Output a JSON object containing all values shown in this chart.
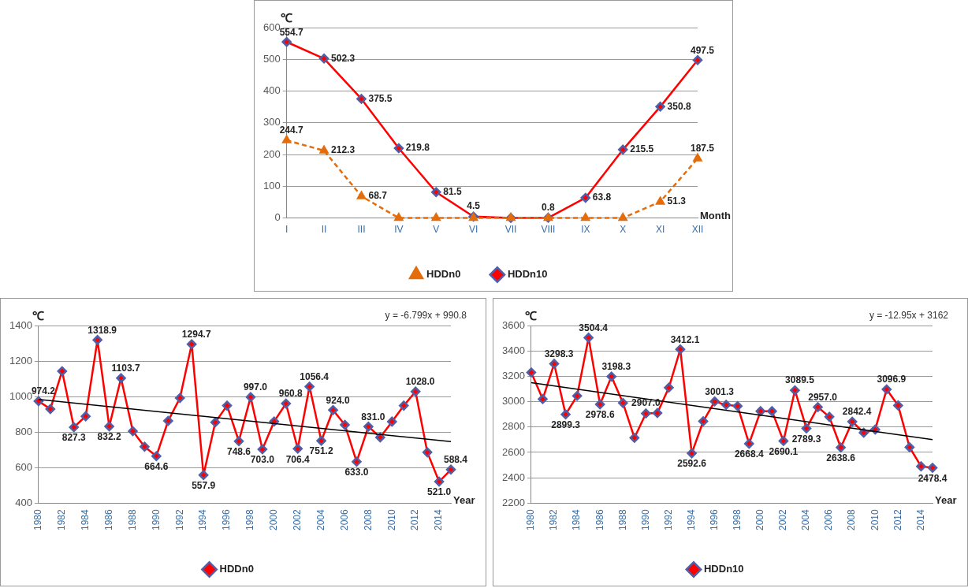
{
  "chart_data": [
    {
      "type": "line",
      "xlabel": "Month",
      "ylabel": "℃",
      "categories": [
        "I",
        "II",
        "III",
        "IV",
        "V",
        "VI",
        "VII",
        "VIII",
        "IX",
        "X",
        "XI",
        "XII"
      ],
      "ylim": [
        0,
        600
      ],
      "yticks": [
        0,
        100,
        200,
        300,
        400,
        500,
        600
      ],
      "grid": "y",
      "legend": "bottom",
      "series": [
        {
          "name": "HDDn0",
          "color": "#e46c0a",
          "marker": "triangle",
          "line_style": "dashed",
          "values": [
            244.7,
            212.3,
            68.7,
            0,
            0,
            0,
            0,
            0,
            0,
            0,
            51.3,
            187.5
          ],
          "value_labels": [
            "244.7",
            "212.3",
            "68.7",
            null,
            null,
            null,
            null,
            null,
            null,
            null,
            "51.3",
            "187.5"
          ]
        },
        {
          "name": "HDDn10",
          "color": "#ff0000",
          "marker": "diamond",
          "line_style": "solid",
          "values": [
            554.7,
            502.3,
            375.5,
            219.8,
            81.5,
            4.5,
            0,
            0.8,
            63.8,
            215.5,
            350.8,
            497.5
          ],
          "value_labels": [
            "554.7",
            "502.3",
            "375.5",
            "219.8",
            "81.5",
            "4.5",
            null,
            "0.8",
            "63.8",
            "215.5",
            "350.8",
            "497.5"
          ]
        }
      ]
    },
    {
      "type": "line",
      "xlabel": "Year",
      "ylabel": "℃",
      "categories": [
        "1980",
        null,
        "1982",
        null,
        "1984",
        null,
        "1986",
        null,
        "1988",
        null,
        "1990",
        null,
        "1992",
        null,
        "1994",
        null,
        "1996",
        null,
        "1998",
        null,
        "2000",
        null,
        "2002",
        null,
        "2004",
        null,
        "2006",
        null,
        "2008",
        null,
        "2010",
        null,
        "2012",
        null,
        "2014",
        null
      ],
      "ylim": [
        400,
        1400
      ],
      "yticks": [
        400,
        600,
        800,
        1000,
        1200,
        1400
      ],
      "grid": "y",
      "legend": "bottom",
      "annotations": [
        "y = -6.799x + 990.8"
      ],
      "series": [
        {
          "name": "HDDn0",
          "color": "#ff0000",
          "marker": "diamond",
          "line_style": "solid",
          "values": [
            974.2,
            930,
            1143,
            827.3,
            889,
            1318.9,
            832.2,
            1103.7,
            805,
            718,
            664.6,
            863,
            992,
            1294.7,
            557.9,
            855,
            949,
            748.6,
            997.0,
            703.0,
            860,
            960.8,
            706.4,
            1056.4,
            751.2,
            924.0,
            841,
            633.0,
            831.0,
            770,
            859,
            949,
            1028.0,
            686,
            521.0,
            588.4
          ],
          "value_labels": [
            "974.2",
            null,
            null,
            "827.3",
            null,
            "1318.9",
            "832.2",
            "1103.7",
            null,
            null,
            "664.6",
            null,
            null,
            "1294.7",
            "557.9",
            null,
            null,
            "748.6",
            "997.0",
            "703.0",
            null,
            "960.8",
            "706.4",
            "1056.4",
            "751.2",
            "924.0",
            null,
            "633.0",
            "831.0",
            null,
            null,
            null,
            "1028.0",
            null,
            "521.0",
            "588.4"
          ]
        },
        {
          "type": "line",
          "color": "#000000",
          "marker": "none",
          "line_style": "solid",
          "values": [
            984.0,
            null,
            null,
            null,
            null,
            null,
            null,
            null,
            null,
            null,
            null,
            null,
            null,
            null,
            null,
            null,
            null,
            null,
            null,
            null,
            null,
            null,
            null,
            null,
            null,
            null,
            null,
            null,
            null,
            null,
            null,
            null,
            null,
            null,
            null,
            746.0
          ]
        }
      ]
    },
    {
      "type": "line",
      "xlabel": "Year",
      "ylabel": "℃",
      "categories": [
        "1980",
        null,
        "1982",
        null,
        "1984",
        null,
        "1986",
        null,
        "1988",
        null,
        "1990",
        null,
        "1992",
        null,
        "1994",
        null,
        "1996",
        null,
        "1998",
        null,
        "2000",
        null,
        "2002",
        null,
        "2004",
        null,
        "2006",
        null,
        "2008",
        null,
        "2010",
        null,
        "2012",
        null,
        "2014",
        null
      ],
      "ylim": [
        2200,
        3600
      ],
      "yticks": [
        2200,
        2400,
        2600,
        2800,
        3000,
        3200,
        3400,
        3600
      ],
      "grid": "y",
      "legend": "bottom",
      "annotations": [
        "y = -12.95x + 3162"
      ],
      "series": [
        {
          "name": "HDDn10",
          "color": "#ff0000",
          "marker": "diamond",
          "line_style": "solid",
          "values": [
            3230,
            3020,
            3298.3,
            2899.3,
            3045,
            3504.4,
            2978.6,
            3198.3,
            2990,
            2715,
            2907.0,
            2910,
            3110,
            3412.1,
            2592.6,
            2845,
            3001.3,
            2975,
            2965,
            2668.4,
            2925,
            2925,
            2690.1,
            3089.5,
            2789.3,
            2957.0,
            2880,
            2638.6,
            2842.4,
            2755,
            2780,
            3096.9,
            2970,
            2640,
            2490,
            2478.4
          ],
          "value_labels": [
            null,
            null,
            "3298.3",
            "2899.3",
            null,
            "3504.4",
            "2978.6",
            "3198.3",
            null,
            null,
            "2907.0",
            null,
            null,
            "3412.1",
            "2592.6",
            null,
            "3001.3",
            null,
            null,
            "2668.4",
            null,
            null,
            "2690.1",
            "3089.5",
            "2789.3",
            "2957.0",
            null,
            "2638.6",
            "2842.4",
            null,
            null,
            "3096.9",
            null,
            null,
            null,
            "2478.4"
          ]
        },
        {
          "type": "line",
          "color": "#000000",
          "marker": "none",
          "line_style": "solid",
          "values": [
            3150,
            null,
            null,
            null,
            null,
            null,
            null,
            null,
            null,
            null,
            null,
            null,
            null,
            null,
            null,
            null,
            null,
            null,
            null,
            null,
            null,
            null,
            null,
            null,
            null,
            null,
            null,
            null,
            null,
            null,
            null,
            null,
            null,
            null,
            null,
            2700
          ]
        }
      ]
    }
  ]
}
